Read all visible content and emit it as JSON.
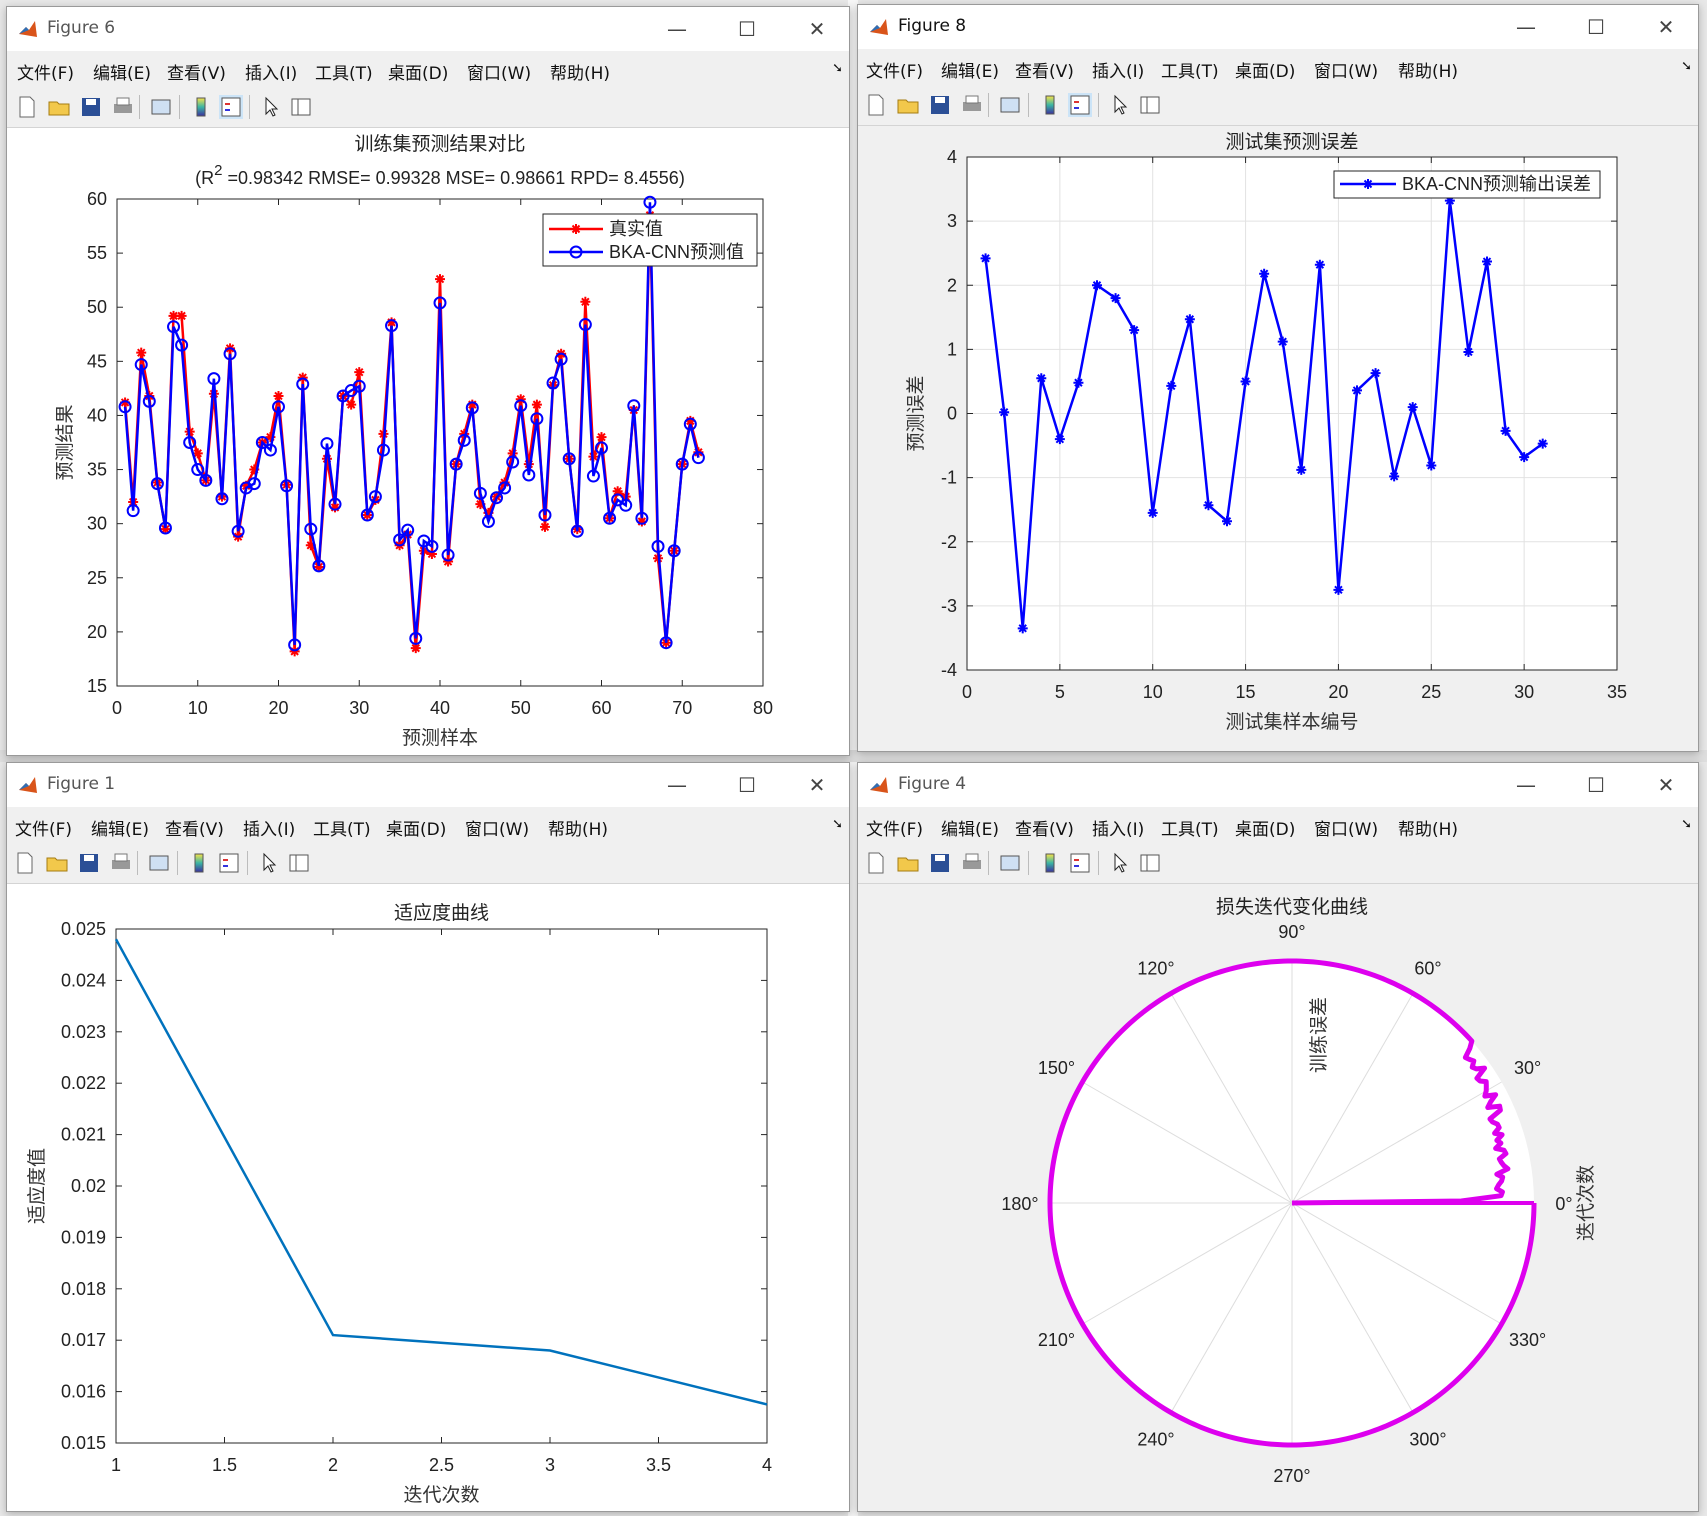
{
  "menu": [
    "文件(F)",
    "编辑(E)",
    "查看(V)",
    "插入(I)",
    "工具(T)",
    "桌面(D)",
    "窗口(W)",
    "帮助(H)"
  ],
  "colors": {
    "red": "#ff0000",
    "blue": "#0000ff",
    "matlab_blue": "#0072bd",
    "magenta": "#dd00ee",
    "grid": "#e2e2e2"
  },
  "windows": {
    "fig6": {
      "title": "Figure 6",
      "chart": {
        "type": "line",
        "title": "训练集预测结果对比",
        "subtitle_parts": [
          "(R",
          "2",
          " =0.98342 RMSE= 0.99328 MSE= 0.98661 RPD= 8.4556)"
        ],
        "xlabel": "预测样本",
        "ylabel": "预测结果",
        "xlim": [
          0,
          80
        ],
        "ylim": [
          15,
          60
        ],
        "xticks": [
          "0",
          "10",
          "20",
          "30",
          "40",
          "50",
          "60",
          "70",
          "80"
        ],
        "yticks": [
          "15",
          "20",
          "25",
          "30",
          "35",
          "40",
          "45",
          "50",
          "55",
          "60"
        ],
        "grid": false,
        "legend_position": "top-right",
        "legend": [
          "真实值",
          "BKA-CNN预测值"
        ],
        "series": [
          {
            "name": "真实值",
            "color": "#ff0000",
            "marker": "*",
            "values": [
              41.2,
              32,
              45.8,
              41.8,
              33.8,
              29.5,
              49.2,
              49.2,
              38.5,
              36.5,
              34,
              42,
              32.5,
              46.2,
              28.8,
              33.5,
              35,
              37.5,
              38,
              41.8,
              33.6,
              18.2,
              43.5,
              28,
              26,
              36,
              31.5,
              41.8,
              41,
              44,
              30.8,
              32.2,
              38.3,
              48.6,
              28,
              29,
              18.5,
              27.5,
              27.2,
              52.6,
              26.5,
              35.5,
              38.3,
              41,
              31.8,
              31,
              32.5,
              33.8,
              36.5,
              41.5,
              35.5,
              41,
              29.7,
              42.8,
              45.7,
              36,
              29.5,
              50.5,
              36.2,
              38,
              30.5,
              33,
              32.5,
              40.5,
              30.2,
              58.5,
              26.8,
              19,
              27.5,
              35.5,
              39.5,
              36.6
            ]
          },
          {
            "name": "BKA-CNN预测值",
            "color": "#0000ff",
            "marker": "o",
            "values": [
              40.8,
              31.2,
              44.7,
              41.3,
              33.7,
              29.6,
              48.2,
              46.5,
              37.5,
              35,
              34,
              43.4,
              32.3,
              45.7,
              29.3,
              33.3,
              33.7,
              37.5,
              36.8,
              40.8,
              33.5,
              18.8,
              42.9,
              29.5,
              26.1,
              37.4,
              31.8,
              41.8,
              42.3,
              42.7,
              30.8,
              32.5,
              36.8,
              48.3,
              28.5,
              29.4,
              19.4,
              28.4,
              27.9,
              50.4,
              27.1,
              35.5,
              37.7,
              40.7,
              32.8,
              30.2,
              32.4,
              33.3,
              35.7,
              40.9,
              34.5,
              39.7,
              30.8,
              43,
              45.2,
              36,
              29.3,
              48.4,
              34.4,
              37,
              30.5,
              32.2,
              31.7,
              40.9,
              30.5,
              59.7,
              27.9,
              19,
              27.5,
              35.5,
              39.2,
              36.1
            ]
          }
        ]
      }
    },
    "fig8": {
      "title": "Figure 8",
      "chart": {
        "type": "line",
        "title": "测试集预测误差",
        "xlabel": "测试集样本编号",
        "ylabel": "预测误差",
        "xlim": [
          0,
          35
        ],
        "ylim": [
          -4,
          4
        ],
        "xticks": [
          "0",
          "5",
          "10",
          "15",
          "20",
          "25",
          "30",
          "35"
        ],
        "yticks": [
          "-4",
          "-3",
          "-2",
          "-1",
          "0",
          "1",
          "2",
          "3",
          "4"
        ],
        "grid": true,
        "legend_position": "top-right",
        "legend": [
          "BKA-CNN预测输出误差"
        ],
        "series": [
          {
            "name": "BKA-CNN预测输出误差",
            "color": "#0000ff",
            "marker": "*",
            "values": [
              2.42,
              0.02,
              -3.35,
              0.55,
              -0.4,
              0.48,
              2,
              1.8,
              1.3,
              -1.55,
              0.43,
              1.47,
              -1.43,
              -1.68,
              0.5,
              2.18,
              1.12,
              -0.88,
              2.32,
              -2.75,
              0.36,
              0.63,
              -0.98,
              0.1,
              -0.81,
              3.32,
              0.96,
              2.37,
              -0.27,
              -0.68,
              -0.47
            ]
          }
        ]
      }
    },
    "fig1": {
      "title": "Figure 1",
      "chart": {
        "type": "line",
        "title": "适应度曲线",
        "xlabel": "迭代次数",
        "ylabel": "适应度值",
        "xlim": [
          1,
          4
        ],
        "ylim": [
          0.015,
          0.025
        ],
        "xticks": [
          "1",
          "1.5",
          "2",
          "2.5",
          "3",
          "3.5",
          "4"
        ],
        "yticks": [
          "0.015",
          "0.016",
          "0.017",
          "0.018",
          "0.019",
          "0.02",
          "0.021",
          "0.022",
          "0.023",
          "0.024",
          "0.025"
        ],
        "grid": false,
        "x": [
          1,
          2,
          3,
          4
        ],
        "values": [
          0.0248,
          0.0171,
          0.0168,
          0.01575
        ]
      }
    },
    "fig4": {
      "title": "Figure 4",
      "chart": {
        "type": "polar",
        "title": "损失迭代变化曲线",
        "radial_label": "训练误差",
        "angular_label": "迭代次数",
        "angle_labels": [
          "0°",
          "30°",
          "60°",
          "90°",
          "120°",
          "150°",
          "180°",
          "210°",
          "240°",
          "270°",
          "300°",
          "330°"
        ],
        "color": "#dd00ee"
      }
    }
  }
}
